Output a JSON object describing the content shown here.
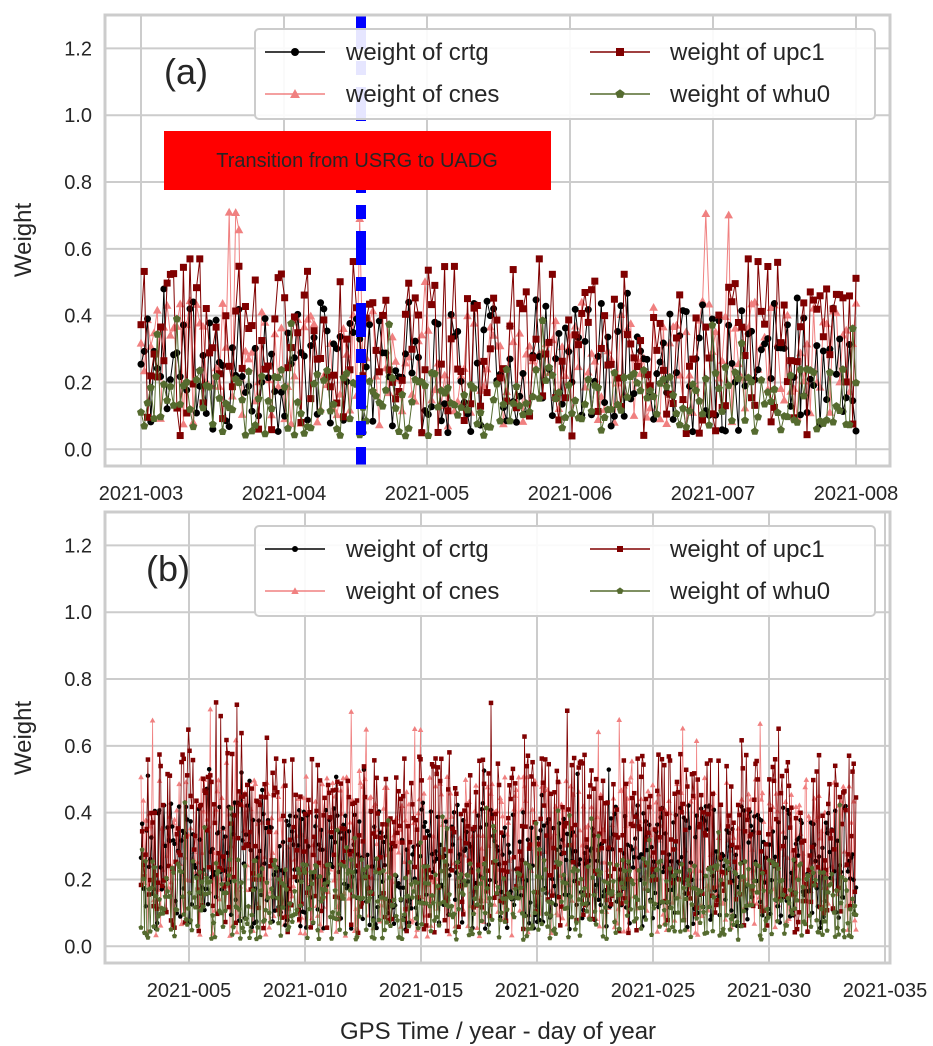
{
  "colors": {
    "crtg": "#000000",
    "cnes": "#f08080",
    "upc1": "#800000",
    "whu0": "#556b2f",
    "grid": "#cccccc",
    "transition_box": "#ff0000",
    "transition_line": "#0000ff"
  },
  "chart_data": [
    {
      "type": "line",
      "panel_label": "(a)",
      "ylabel": "Weight",
      "xlabel": "",
      "ylim": [
        -0.05,
        1.3
      ],
      "yticks": [
        "0.0",
        "0.2",
        "0.4",
        "0.6",
        "0.8",
        "1.0",
        "1.2"
      ],
      "xtick_labels": [
        "2021-003",
        "2021-004",
        "2021-005",
        "2021-006",
        "2021-007",
        "2021-008"
      ],
      "grid": true,
      "legend_position": "upper-right",
      "legend_columns": 2,
      "annotation": "Transition from USRG to UADG",
      "transition_day": "2021-106",
      "series": [
        {
          "name": "weight of crtg",
          "key": "crtg",
          "marker": "circle",
          "range": [
            0.05,
            0.48
          ],
          "mean": 0.25
        },
        {
          "name": "weight of cnes",
          "key": "cnes",
          "marker": "triangle",
          "range": [
            0.07,
            0.71
          ],
          "mean": 0.26
        },
        {
          "name": "weight of upc1",
          "key": "upc1",
          "marker": "square",
          "range": [
            0.04,
            0.57
          ],
          "mean": 0.31
        },
        {
          "name": "weight of whu0",
          "key": "whu0",
          "marker": "pentagon",
          "range": [
            0.04,
            0.39
          ],
          "mean": 0.14
        }
      ]
    },
    {
      "type": "line",
      "panel_label": "(b)",
      "ylabel": "Weight",
      "xlabel": "GPS Time / year - day of year",
      "ylim": [
        -0.05,
        1.3
      ],
      "yticks": [
        "0.0",
        "0.2",
        "0.4",
        "0.6",
        "0.8",
        "1.0",
        "1.2"
      ],
      "xtick_labels": [
        "2021-005",
        "2021-010",
        "2021-015",
        "2021-020",
        "2021-025",
        "2021-030",
        "2021-035"
      ],
      "grid": true,
      "legend_position": "upper-right",
      "legend_columns": 2,
      "series": [
        {
          "name": "weight of crtg",
          "key": "crtg",
          "marker": "circle",
          "range": [
            0.05,
            0.53
          ],
          "mean": 0.24
        },
        {
          "name": "weight of cnes",
          "key": "cnes",
          "marker": "triangle",
          "range": [
            0.03,
            0.71
          ],
          "mean": 0.27
        },
        {
          "name": "weight of upc1",
          "key": "upc1",
          "marker": "square",
          "range": [
            0.04,
            0.73
          ],
          "mean": 0.31
        },
        {
          "name": "weight of whu0",
          "key": "whu0",
          "marker": "pentagon",
          "range": [
            0.02,
            0.43
          ],
          "mean": 0.14
        }
      ]
    }
  ]
}
